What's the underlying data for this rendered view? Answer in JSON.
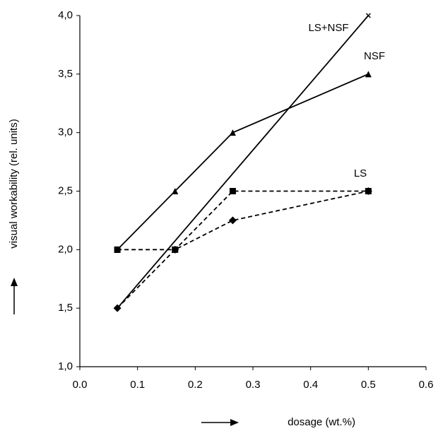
{
  "chart_data": {
    "type": "line",
    "xlabel": "dosage (wt.%)",
    "ylabel": "visual workability (rel. units)",
    "xlim": [
      0,
      0.6
    ],
    "xticks": [
      {
        "value": 0,
        "label": "0.0"
      },
      0.1,
      0.2,
      0.3,
      0.4,
      0.5,
      0.6
    ],
    "ylim": [
      1,
      4
    ],
    "yticks": [
      {
        "value": 1,
        "label": "1,0"
      },
      {
        "value": 1.5,
        "label": "1,5"
      },
      {
        "value": 2,
        "label": "2,0"
      },
      {
        "value": 2.5,
        "label": "2,5"
      },
      {
        "value": 3,
        "label": "3,0"
      },
      {
        "value": 3.5,
        "label": "3,5"
      },
      {
        "value": 4,
        "label": "4,0"
      }
    ],
    "labels": [
      "LS+NSF",
      "NSF",
      "LS"
    ],
    "series": [
      {
        "name": "LS+NSF",
        "color": "#000000",
        "marker": "x",
        "dashed": false,
        "x": [
          0.065,
          0.5
        ],
        "values": [
          1.5,
          4.0
        ]
      },
      {
        "name": "NSF",
        "color": "#000000",
        "marker": "triangle",
        "dashed": false,
        "x": [
          0.065,
          0.165,
          0.265,
          0.5
        ],
        "values": [
          2.0,
          2.5,
          3.0,
          3.5
        ]
      },
      {
        "name": "LS",
        "color": "#000000",
        "marker": "square",
        "dashed": true,
        "x": [
          0.065,
          0.165,
          0.265,
          0.5
        ],
        "values": [
          2.0,
          2.0,
          2.5,
          2.5
        ]
      },
      {
        "color": "#000000",
        "marker": "diamond",
        "dashed": true,
        "x": [
          0.065,
          0.165,
          0.265,
          0.5
        ],
        "values": [
          1.5,
          2.0,
          2.25,
          2.5
        ]
      }
    ]
  }
}
